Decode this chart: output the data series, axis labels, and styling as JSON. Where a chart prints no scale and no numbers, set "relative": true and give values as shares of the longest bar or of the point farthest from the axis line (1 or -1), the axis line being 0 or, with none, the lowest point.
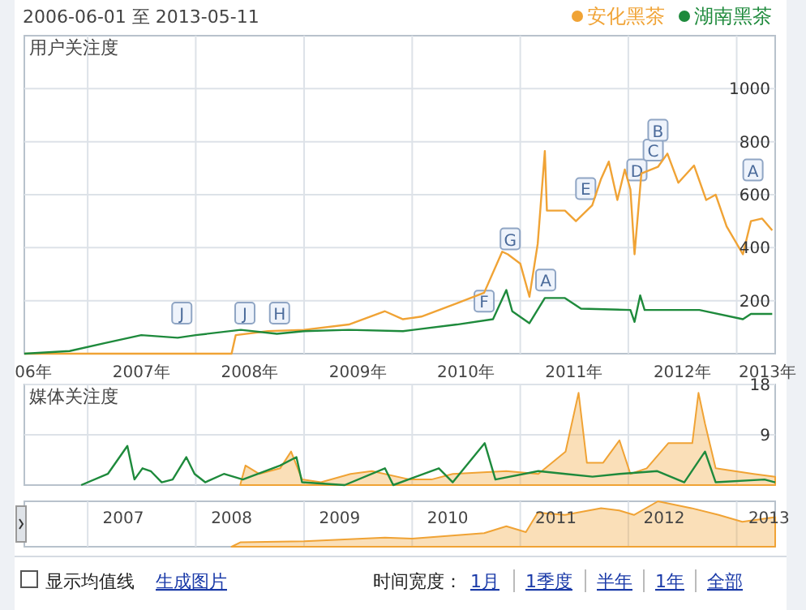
{
  "chart_data": [
    {
      "type": "line",
      "title": "用户关注度",
      "subtitle": "2006-06-01 至 2013-05-11",
      "legend": "top right",
      "grid": true,
      "xlim": [
        "2006-06-01",
        "2013-05-11"
      ],
      "ylim": [
        0,
        1200
      ],
      "yticks": [
        200,
        400,
        600,
        800,
        1000
      ],
      "xticks": [
        {
          "value": "2006-07-01",
          "label": "06年"
        },
        {
          "value": "2007-01-01",
          "label": null
        },
        {
          "value": "2007-07-01",
          "label": "2007年"
        },
        {
          "value": "2008-01-01",
          "label": null
        },
        {
          "value": "2008-07-01",
          "label": "2008年"
        },
        {
          "value": "2009-01-01",
          "label": null
        },
        {
          "value": "2009-07-01",
          "label": "2009年"
        },
        {
          "value": "2010-01-01",
          "label": null
        },
        {
          "value": "2010-07-01",
          "label": "2010年"
        },
        {
          "value": "2011-01-01",
          "label": null
        },
        {
          "value": "2011-07-01",
          "label": "2011年"
        },
        {
          "value": "2012-01-01",
          "label": null
        },
        {
          "value": "2012-07-01",
          "label": "2012年"
        },
        {
          "value": "2013-01-01",
          "label": null
        },
        {
          "value": "2013-04-15",
          "label": "2013年"
        }
      ],
      "series": [
        {
          "name": "安化黑茶",
          "color": "#f0a335",
          "x": [
            "2006-06-01",
            "2008-05-01",
            "2008-05-15",
            "2008-09-01",
            "2009-01-01",
            "2009-06-01",
            "2009-10-01",
            "2009-12-01",
            "2010-02-01",
            "2010-06-01",
            "2010-09-01",
            "2010-11-01",
            "2010-11-20",
            "2011-01-01",
            "2011-02-01",
            "2011-03-01",
            "2011-03-25",
            "2011-04-01",
            "2011-06-01",
            "2011-07-08",
            "2011-09-01",
            "2011-10-01",
            "2011-10-27",
            "2011-11-25",
            "2011-12-20",
            "2012-01-08",
            "2012-01-22",
            "2012-02-14",
            "2012-04-10",
            "2012-05-12",
            "2012-06-18",
            "2012-08-10",
            "2012-09-20",
            "2012-10-22",
            "2012-11-28",
            "2013-01-22",
            "2013-02-18",
            "2013-03-28",
            "2013-05-01"
          ],
          "values": [
            0,
            0,
            70,
            85,
            90,
            110,
            160,
            130,
            140,
            190,
            230,
            385,
            375,
            340,
            215,
            415,
            765,
            540,
            540,
            500,
            560,
            660,
            725,
            580,
            695,
            620,
            375,
            680,
            705,
            755,
            645,
            710,
            580,
            600,
            480,
            375,
            500,
            510,
            465
          ]
        },
        {
          "name": "湖南黑茶",
          "color": "#1e8a3c",
          "x": [
            "2006-06-01",
            "2006-11-01",
            "2007-03-01",
            "2007-07-01",
            "2007-11-01",
            "2008-01-01",
            "2008-06-01",
            "2008-10-01",
            "2009-01-01",
            "2009-06-01",
            "2009-12-01",
            "2010-06-01",
            "2010-10-01",
            "2010-11-15",
            "2010-12-05",
            "2011-02-01",
            "2011-03-25",
            "2011-06-01",
            "2011-07-25",
            "2012-01-08",
            "2012-01-22",
            "2012-02-10",
            "2012-02-25",
            "2012-08-28",
            "2013-01-22",
            "2013-02-18",
            "2013-05-01"
          ],
          "values": [
            0,
            10,
            40,
            70,
            60,
            70,
            90,
            75,
            85,
            90,
            85,
            110,
            130,
            240,
            160,
            115,
            210,
            210,
            170,
            165,
            120,
            220,
            165,
            165,
            130,
            150,
            150
          ]
        }
      ],
      "annotations": [
        {
          "text": "J",
          "x": "2007-11-15",
          "y": 150
        },
        {
          "text": "J",
          "x": "2008-06-15",
          "y": 150
        },
        {
          "text": "H",
          "x": "2008-10-10",
          "y": 150
        },
        {
          "text": "F",
          "x": "2010-09-01",
          "y": 195
        },
        {
          "text": "G",
          "x": "2010-11-28",
          "y": 430
        },
        {
          "text": "A",
          "x": "2011-03-28",
          "y": 275
        },
        {
          "text": "E",
          "x": "2011-08-10",
          "y": 620
        },
        {
          "text": "D",
          "x": "2012-01-30",
          "y": 690
        },
        {
          "text": "C",
          "x": "2012-03-25",
          "y": 765
        },
        {
          "text": "B",
          "x": "2012-04-10",
          "y": 840
        },
        {
          "text": "A",
          "x": "2013-02-25",
          "y": 690
        }
      ]
    },
    {
      "type": "line",
      "title": "媒体关注度",
      "grid": true,
      "tick_labels": "y",
      "xlim": [
        "2006-06-01",
        "2013-05-11"
      ],
      "ylim": [
        0,
        18
      ],
      "yticks": [
        9,
        18
      ],
      "xticks": [
        {
          "value": "2007-01-01",
          "label": null
        },
        {
          "value": "2008-01-01",
          "label": null
        },
        {
          "value": "2009-01-01",
          "label": null
        },
        {
          "value": "2010-01-01",
          "label": null
        },
        {
          "value": "2011-01-01",
          "label": null
        },
        {
          "value": "2012-01-01",
          "label": null
        },
        {
          "value": "2013-01-01",
          "label": null
        }
      ],
      "series": [
        {
          "type": "area",
          "color": "#f0a335",
          "x": [
            "2008-05-30",
            "2008-06-17",
            "2008-08-02",
            "2008-10-12",
            "2008-11-18",
            "2008-12-25",
            "2009-02-27",
            "2009-06-07",
            "2009-08-18",
            "2009-12-24",
            "2010-03-07",
            "2010-05-18",
            "2010-11-15",
            "2011-03-03",
            "2011-06-03",
            "2011-07-17",
            "2011-08-14",
            "2011-10-08",
            "2011-12-02",
            "2012-01-08",
            "2012-03-03",
            "2012-05-15",
            "2012-08-04",
            "2012-08-25",
            "2012-09-16",
            "2012-10-22",
            "2013-02-27",
            "2013-05-11"
          ],
          "values": [
            0,
            3.5,
            2,
            3,
            6,
            1,
            0.5,
            2,
            2.5,
            1,
            1,
            2,
            2.5,
            2,
            6,
            16.5,
            4,
            4,
            8,
            2,
            3,
            7.5,
            7.5,
            16.5,
            11,
            3,
            2,
            1.5
          ]
        },
        {
          "color": "#1e8a3c",
          "x": [
            "2006-12-10",
            "2007-03-10",
            "2007-05-15",
            "2007-06-08",
            "2007-07-05",
            "2007-08-02",
            "2007-09-08",
            "2007-10-15",
            "2007-11-30",
            "2007-12-28",
            "2008-02-02",
            "2008-04-05",
            "2008-06-08",
            "2008-10-12",
            "2008-12-06",
            "2008-12-25",
            "2009-05-18",
            "2009-10-01",
            "2009-10-29",
            "2010-04-01",
            "2010-05-18",
            "2010-09-03",
            "2010-10-09",
            "2011-03-03",
            "2011-06-03",
            "2011-09-02",
            "2011-12-02",
            "2012-04-08",
            "2012-07-08",
            "2012-09-16",
            "2012-10-22",
            "2013-04-05",
            "2013-05-11"
          ],
          "values": [
            0,
            2,
            7,
            1,
            3,
            2.5,
            0.5,
            1,
            5,
            2,
            0.5,
            2,
            1,
            3.5,
            5,
            0.5,
            0,
            3,
            0,
            3,
            0.5,
            7.5,
            1,
            2.5,
            2,
            1.5,
            2,
            2.5,
            0.5,
            6,
            0.5,
            1,
            0.5
          ]
        }
      ]
    },
    {
      "type": "area",
      "relative": true,
      "grid": "x",
      "xlim": [
        "2006-06-01",
        "2013-05-11"
      ],
      "xticks": [
        {
          "value": "2007-01-01",
          "label": null
        },
        {
          "value": "2007-05-01",
          "label": "2007"
        },
        {
          "value": "2008-01-01",
          "label": null
        },
        {
          "value": "2008-05-01",
          "label": "2008"
        },
        {
          "value": "2009-01-01",
          "label": null
        },
        {
          "value": "2009-05-01",
          "label": "2009"
        },
        {
          "value": "2010-01-01",
          "label": null
        },
        {
          "value": "2010-05-01",
          "label": "2010"
        },
        {
          "value": "2011-01-01",
          "label": null
        },
        {
          "value": "2011-05-01",
          "label": "2011"
        },
        {
          "value": "2012-01-01",
          "label": null
        },
        {
          "value": "2012-05-01",
          "label": "2012"
        },
        {
          "value": "2013-01-01",
          "label": null
        },
        {
          "value": "2013-04-20",
          "label": "2013"
        }
      ],
      "series": [
        {
          "color": "#f0a335",
          "x": [
            "2008-05-01",
            "2008-06-01",
            "2009-01-01",
            "2009-10-01",
            "2010-01-01",
            "2010-09-01",
            "2010-11-15",
            "2011-01-20",
            "2011-03-01",
            "2011-06-01",
            "2011-10-01",
            "2011-12-01",
            "2012-01-20",
            "2012-04-10",
            "2012-08-01",
            "2012-11-01",
            "2013-01-20",
            "2013-05-11"
          ],
          "values": [
            0,
            0.1,
            0.12,
            0.2,
            0.18,
            0.3,
            0.45,
            0.32,
            0.75,
            0.7,
            0.85,
            0.8,
            0.7,
            1,
            0.85,
            0.7,
            0.55,
            0.65
          ]
        }
      ],
      "annotations": [
        "显示均值线",
        "生成图片",
        "时间宽度：",
        "1月",
        "1季度",
        "半年",
        "1年",
        "全部"
      ]
    }
  ]
}
